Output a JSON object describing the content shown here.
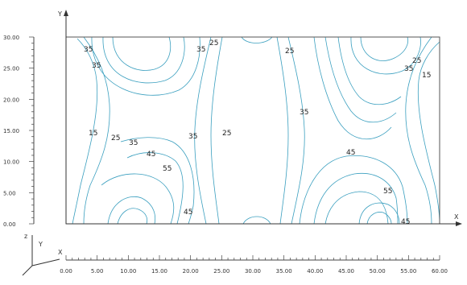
{
  "axes": {
    "x_letter": "X",
    "y_letter": "Y",
    "z_letter": "z",
    "x_ticks": [
      "0.00",
      "5.00",
      "10.00",
      "15.00",
      "20.00",
      "25.00",
      "30.00",
      "35.00",
      "40.00",
      "45.00",
      "50.00",
      "55.00",
      "60.00"
    ],
    "y_ticks": [
      "0.00",
      "5.00",
      "10.00",
      "15.00",
      "20.00",
      "25.00",
      "30.00"
    ]
  },
  "contour_labels": [
    {
      "text": "35",
      "name": "contour-label-35-topleft"
    },
    {
      "text": "35",
      "name": "contour-label-35-left-upper"
    },
    {
      "text": "35",
      "name": "contour-label-35-top-mid"
    },
    {
      "text": "25",
      "name": "contour-label-25-top-mid"
    },
    {
      "text": "25",
      "name": "contour-label-25-top-center"
    },
    {
      "text": "25",
      "name": "contour-label-25-topright"
    },
    {
      "text": "35",
      "name": "contour-label-35-topright"
    },
    {
      "text": "15",
      "name": "contour-label-15-right"
    },
    {
      "text": "15",
      "name": "contour-label-15-left"
    },
    {
      "text": "25",
      "name": "contour-label-25-left"
    },
    {
      "text": "35",
      "name": "contour-label-35-left-mid"
    },
    {
      "text": "45",
      "name": "contour-label-45-left"
    },
    {
      "text": "55",
      "name": "contour-label-55-left"
    },
    {
      "text": "35",
      "name": "contour-label-35-center-left"
    },
    {
      "text": "25",
      "name": "contour-label-25-center"
    },
    {
      "text": "35",
      "name": "contour-label-35-center-right"
    },
    {
      "text": "45",
      "name": "contour-label-45-right"
    },
    {
      "text": "55",
      "name": "contour-label-55-right"
    },
    {
      "text": "45",
      "name": "contour-label-45-bottom-mid"
    },
    {
      "text": "45",
      "name": "contour-label-45-bottom-right"
    }
  ],
  "colors": {
    "contour": "#3a9fbf",
    "frame": "#555555",
    "axis": "#333333"
  }
}
